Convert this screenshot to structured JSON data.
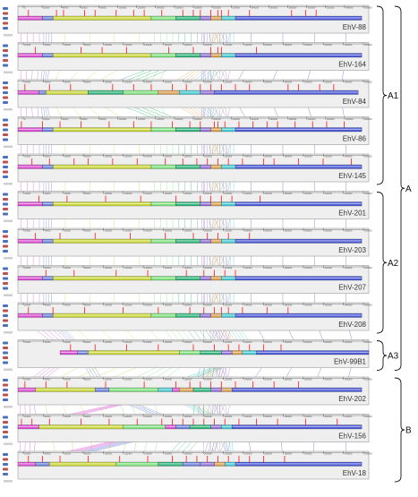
{
  "tracks": [
    {
      "name": "EhV-88",
      "axis": [
        "0",
        "20000",
        "40000",
        "60000",
        "80000",
        "100000",
        "120000",
        "140000",
        "160000",
        "180000",
        "200000",
        "220000",
        "240000",
        "260000",
        "280000",
        "300000",
        "320000",
        "340000",
        "360000"
      ],
      "blocks": [
        [
          "#d94fd1",
          0.0,
          0.07
        ],
        [
          "#6a7fd8",
          0.07,
          0.1
        ],
        [
          "#c9d63b",
          0.1,
          0.38
        ],
        [
          "#7ee07e",
          0.38,
          0.45
        ],
        [
          "#2fb37a",
          0.45,
          0.52
        ],
        [
          "#8f6fd6",
          0.52,
          0.55
        ],
        [
          "#d8a050",
          0.55,
          0.58
        ],
        [
          "#47c8d0",
          0.58,
          0.62
        ],
        [
          "#4c5ad6",
          0.62,
          0.98
        ]
      ],
      "marks": [
        0.03,
        0.11,
        0.13,
        0.19,
        0.22,
        0.28,
        0.33,
        0.36,
        0.41,
        0.47,
        0.5,
        0.52,
        0.55,
        0.57,
        0.58,
        0.6,
        0.66,
        0.78,
        0.82,
        0.85
      ]
    },
    {
      "name": "EhV-164",
      "axis": [
        "20000",
        "40000",
        "60000",
        "80000",
        "100000",
        "120000",
        "140000",
        "160000",
        "180000",
        "200000",
        "220000",
        "240000",
        "260000",
        "280000",
        "300000",
        "320000",
        "340000",
        "360000"
      ],
      "blocks": [
        [
          "#d94fd1",
          0.0,
          0.07
        ],
        [
          "#6a7fd8",
          0.07,
          0.1
        ],
        [
          "#c9d63b",
          0.1,
          0.38
        ],
        [
          "#7ee07e",
          0.38,
          0.45
        ],
        [
          "#2fb37a",
          0.45,
          0.52
        ],
        [
          "#8f6fd6",
          0.52,
          0.55
        ],
        [
          "#d8a050",
          0.55,
          0.58
        ],
        [
          "#47c8d0",
          0.58,
          0.62
        ],
        [
          "#4c5ad6",
          0.62,
          0.98
        ]
      ],
      "marks": [
        0.05,
        0.18,
        0.24,
        0.31,
        0.43,
        0.5,
        0.55,
        0.57,
        0.58,
        0.68
      ]
    },
    {
      "name": "EhV-84",
      "axis": [
        "20000",
        "40000",
        "60000",
        "80000",
        "100000",
        "120000",
        "140000",
        "160000",
        "180000",
        "200000",
        "220000",
        "240000",
        "260000",
        "280000",
        "300000",
        "320000",
        "340000",
        "360000"
      ],
      "blocks": [
        [
          "#d94fd1",
          0.0,
          0.06
        ],
        [
          "#6a7fd8",
          0.06,
          0.08
        ],
        [
          "#c9d63b",
          0.08,
          0.2
        ],
        [
          "#2fb37a",
          0.2,
          0.3
        ],
        [
          "#7ee07e",
          0.3,
          0.4
        ],
        [
          "#d8a050",
          0.4,
          0.46
        ],
        [
          "#47c8d0",
          0.46,
          0.52
        ],
        [
          "#8f6fd6",
          0.52,
          0.56
        ],
        [
          "#4c5ad6",
          0.56,
          0.97
        ]
      ],
      "marks": [
        0.02,
        0.09,
        0.15,
        0.27,
        0.33,
        0.38,
        0.44,
        0.48,
        0.52,
        0.55,
        0.58,
        0.62,
        0.66,
        0.77,
        0.8,
        0.86,
        0.9
      ]
    },
    {
      "name": "EhV-86",
      "axis": [
        "0",
        "20000",
        "40000",
        "60000",
        "80000",
        "100000",
        "120000",
        "140000",
        "160000",
        "180000",
        "200000",
        "220000",
        "240000",
        "260000",
        "280000",
        "300000",
        "320000",
        "340000",
        "360000"
      ],
      "blocks": [
        [
          "#d94fd1",
          0.0,
          0.07
        ],
        [
          "#6a7fd8",
          0.07,
          0.1
        ],
        [
          "#c9d63b",
          0.1,
          0.38
        ],
        [
          "#7ee07e",
          0.38,
          0.45
        ],
        [
          "#2fb37a",
          0.45,
          0.52
        ],
        [
          "#8f6fd6",
          0.52,
          0.55
        ],
        [
          "#d8a050",
          0.55,
          0.58
        ],
        [
          "#47c8d0",
          0.58,
          0.62
        ],
        [
          "#4c5ad6",
          0.62,
          0.98
        ]
      ],
      "marks": [
        0.01,
        0.07,
        0.12,
        0.18,
        0.26,
        0.33,
        0.38,
        0.44,
        0.49,
        0.52,
        0.56,
        0.57,
        0.59,
        0.63,
        0.67,
        0.71,
        0.74,
        0.79,
        0.84,
        0.88,
        0.93
      ]
    },
    {
      "name": "EhV-145",
      "axis": [
        "20000",
        "40000",
        "60000",
        "80000",
        "100000",
        "120000",
        "140000",
        "160000",
        "180000",
        "200000",
        "220000",
        "240000",
        "260000",
        "280000",
        "300000",
        "320000",
        "340000",
        "360000"
      ],
      "blocks": [
        [
          "#d94fd1",
          0.0,
          0.07
        ],
        [
          "#6a7fd8",
          0.07,
          0.1
        ],
        [
          "#c9d63b",
          0.1,
          0.38
        ],
        [
          "#7ee07e",
          0.38,
          0.45
        ],
        [
          "#2fb37a",
          0.45,
          0.52
        ],
        [
          "#8f6fd6",
          0.52,
          0.55
        ],
        [
          "#d8a050",
          0.55,
          0.58
        ],
        [
          "#47c8d0",
          0.58,
          0.62
        ],
        [
          "#4c5ad6",
          0.62,
          0.98
        ]
      ],
      "marks": [
        0.04,
        0.09,
        0.16,
        0.2,
        0.27,
        0.34,
        0.42,
        0.47,
        0.51,
        0.54,
        0.57,
        0.6,
        0.64,
        0.7,
        0.73,
        0.8,
        0.87,
        0.95
      ]
    },
    {
      "name": "EhV-201",
      "axis": [
        "20000",
        "40000",
        "60000",
        "80000",
        "100000",
        "120000",
        "140000",
        "160000",
        "180000",
        "200000",
        "220000",
        "240000",
        "260000",
        "280000",
        "300000",
        "320000",
        "340000",
        "360000"
      ],
      "blocks": [
        [
          "#d94fd1",
          0.0,
          0.07
        ],
        [
          "#6a7fd8",
          0.07,
          0.1
        ],
        [
          "#c9d63b",
          0.1,
          0.38
        ],
        [
          "#7ee07e",
          0.38,
          0.45
        ],
        [
          "#2fb37a",
          0.45,
          0.52
        ],
        [
          "#8f6fd6",
          0.52,
          0.55
        ],
        [
          "#d8a050",
          0.55,
          0.58
        ],
        [
          "#47c8d0",
          0.58,
          0.62
        ],
        [
          "#4c5ad6",
          0.62,
          0.98
        ]
      ],
      "marks": [
        0.06,
        0.14,
        0.25,
        0.35,
        0.45,
        0.52,
        0.55,
        0.58,
        0.61,
        0.69
      ]
    },
    {
      "name": "EhV-203",
      "axis": [
        "20000",
        "40000",
        "60000",
        "80000",
        "100000",
        "120000",
        "140000",
        "160000",
        "180000",
        "200000",
        "220000",
        "240000",
        "260000",
        "280000",
        "300000",
        "320000",
        "340000",
        "360000"
      ],
      "blocks": [
        [
          "#d94fd1",
          0.0,
          0.07
        ],
        [
          "#6a7fd8",
          0.07,
          0.1
        ],
        [
          "#c9d63b",
          0.1,
          0.38
        ],
        [
          "#7ee07e",
          0.38,
          0.45
        ],
        [
          "#2fb37a",
          0.45,
          0.52
        ],
        [
          "#8f6fd6",
          0.52,
          0.55
        ],
        [
          "#d8a050",
          0.55,
          0.58
        ],
        [
          "#47c8d0",
          0.58,
          0.62
        ],
        [
          "#4c5ad6",
          0.62,
          0.98
        ]
      ],
      "marks": [
        0.05,
        0.12,
        0.22,
        0.32,
        0.42,
        0.5,
        0.54,
        0.57,
        0.6,
        0.66
      ]
    },
    {
      "name": "EhV-207",
      "axis": [
        "20000",
        "40000",
        "60000",
        "80000",
        "100000",
        "120000",
        "140000",
        "160000",
        "180000",
        "200000",
        "220000",
        "240000",
        "260000",
        "280000",
        "300000",
        "320000",
        "340000",
        "360000"
      ],
      "blocks": [
        [
          "#d94fd1",
          0.0,
          0.07
        ],
        [
          "#6a7fd8",
          0.07,
          0.1
        ],
        [
          "#c9d63b",
          0.1,
          0.38
        ],
        [
          "#7ee07e",
          0.38,
          0.45
        ],
        [
          "#2fb37a",
          0.45,
          0.52
        ],
        [
          "#8f6fd6",
          0.52,
          0.55
        ],
        [
          "#d8a050",
          0.55,
          0.58
        ],
        [
          "#47c8d0",
          0.58,
          0.62
        ],
        [
          "#4c5ad6",
          0.62,
          0.98
        ]
      ],
      "marks": [
        0.08,
        0.16,
        0.28,
        0.37,
        0.48,
        0.53,
        0.56,
        0.59,
        0.62
      ]
    },
    {
      "name": "EhV-208",
      "axis": [
        "20000",
        "40000",
        "60000",
        "80000",
        "100000",
        "120000",
        "140000",
        "160000",
        "180000",
        "200000",
        "220000",
        "240000",
        "260000",
        "280000",
        "300000",
        "320000",
        "340000",
        "360000"
      ],
      "blocks": [
        [
          "#d94fd1",
          0.0,
          0.07
        ],
        [
          "#6a7fd8",
          0.07,
          0.1
        ],
        [
          "#c9d63b",
          0.1,
          0.38
        ],
        [
          "#7ee07e",
          0.38,
          0.45
        ],
        [
          "#2fb37a",
          0.45,
          0.52
        ],
        [
          "#8f6fd6",
          0.52,
          0.55
        ],
        [
          "#d8a050",
          0.55,
          0.58
        ],
        [
          "#47c8d0",
          0.58,
          0.62
        ],
        [
          "#4c5ad6",
          0.62,
          0.98
        ]
      ],
      "marks": [
        0.03,
        0.1,
        0.19,
        0.3,
        0.4,
        0.49,
        0.53,
        0.56,
        0.58,
        0.6,
        0.64,
        0.71,
        0.77
      ]
    },
    {
      "name": "EhV-99B1",
      "axis": [
        "20000",
        "40000",
        "60000",
        "80000",
        "100000",
        "120000",
        "140000",
        "160000",
        "180000",
        "200000",
        "220000",
        "240000",
        "260000",
        "280000",
        "300000",
        "320000",
        "340000",
        "360000"
      ],
      "blocks": [
        [
          "#d94fd1",
          0.12,
          0.17
        ],
        [
          "#6a7fd8",
          0.17,
          0.2
        ],
        [
          "#c9d63b",
          0.2,
          0.46
        ],
        [
          "#7ee07e",
          0.46,
          0.52
        ],
        [
          "#2fb37a",
          0.52,
          0.58
        ],
        [
          "#8f6fd6",
          0.58,
          0.61
        ],
        [
          "#d8a050",
          0.61,
          0.64
        ],
        [
          "#47c8d0",
          0.64,
          0.68
        ],
        [
          "#4c5ad6",
          0.68,
          1.0
        ]
      ],
      "marks": [
        0.15,
        0.22,
        0.31,
        0.4,
        0.5,
        0.56,
        0.6,
        0.63,
        0.66,
        0.7,
        0.75
      ]
    },
    {
      "name": "EhV-202",
      "axis": [
        "20000",
        "40000",
        "60000",
        "80000",
        "100000",
        "120000",
        "140000",
        "160000",
        "180000",
        "200000",
        "220000",
        "240000",
        "260000",
        "280000",
        "300000",
        "320000",
        "340000",
        "360000"
      ],
      "blocks": [
        [
          "#d94fd1",
          0.0,
          0.05
        ],
        [
          "#c9d63b",
          0.05,
          0.22
        ],
        [
          "#6a7fd8",
          0.22,
          0.26
        ],
        [
          "#7ee07e",
          0.26,
          0.4
        ],
        [
          "#47c8d0",
          0.4,
          0.44
        ],
        [
          "#d94fd1",
          0.44,
          0.46
        ],
        [
          "#d8a050",
          0.46,
          0.5
        ],
        [
          "#2fb37a",
          0.5,
          0.55
        ],
        [
          "#8f6fd6",
          0.55,
          0.58
        ],
        [
          "#d8a050",
          0.58,
          0.61
        ],
        [
          "#4c5ad6",
          0.61,
          0.98
        ]
      ],
      "marks": [
        0.02,
        0.08,
        0.14,
        0.25,
        0.36,
        0.45,
        0.49,
        0.52,
        0.55,
        0.58,
        0.62,
        0.67,
        0.73,
        0.8
      ]
    },
    {
      "name": "EhV-156",
      "axis": [
        "20000",
        "40000",
        "60000",
        "80000",
        "100000",
        "120000",
        "140000",
        "160000",
        "180000",
        "200000",
        "220000",
        "240000",
        "260000",
        "280000",
        "300000",
        "320000",
        "340000",
        "360000"
      ],
      "blocks": [
        [
          "#d94fd1",
          0.0,
          0.06
        ],
        [
          "#c9d63b",
          0.06,
          0.3
        ],
        [
          "#7ee07e",
          0.3,
          0.42
        ],
        [
          "#d94fd1",
          0.42,
          0.45
        ],
        [
          "#6a7fd8",
          0.45,
          0.49
        ],
        [
          "#2fb37a",
          0.49,
          0.55
        ],
        [
          "#8f6fd6",
          0.55,
          0.58
        ],
        [
          "#47c8d0",
          0.58,
          0.61
        ],
        [
          "#4c5ad6",
          0.61,
          0.98
        ]
      ],
      "marks": [
        0.01,
        0.04,
        0.09,
        0.18,
        0.26,
        0.34,
        0.41,
        0.44,
        0.47,
        0.5,
        0.53,
        0.56,
        0.59,
        0.63,
        0.68,
        0.74,
        0.82,
        0.91
      ]
    },
    {
      "name": "EhV-18",
      "axis": [
        "20000",
        "40000",
        "60000",
        "80000",
        "100000",
        "120000",
        "140000",
        "160000",
        "180000",
        "200000",
        "220000",
        "240000",
        "260000",
        "280000",
        "300000",
        "320000",
        "340000",
        "360000"
      ],
      "blocks": [
        [
          "#d94fd1",
          0.0,
          0.05
        ],
        [
          "#6a7fd8",
          0.05,
          0.09
        ],
        [
          "#c9d63b",
          0.09,
          0.28
        ],
        [
          "#7ee07e",
          0.28,
          0.4
        ],
        [
          "#2fb37a",
          0.4,
          0.47
        ],
        [
          "#6a7fd8",
          0.47,
          0.52
        ],
        [
          "#8f6fd6",
          0.52,
          0.56
        ],
        [
          "#d8a050",
          0.56,
          0.59
        ],
        [
          "#47c8d0",
          0.59,
          0.62
        ],
        [
          "#4c5ad6",
          0.62,
          0.98
        ]
      ],
      "marks": [
        0.03,
        0.07,
        0.12,
        0.2,
        0.29,
        0.37,
        0.44,
        0.48,
        0.51,
        0.54,
        0.57,
        0.6,
        0.63,
        0.66,
        0.7,
        0.76
      ]
    }
  ],
  "groups": [
    {
      "label": "A1",
      "from": 0,
      "to": 4
    },
    {
      "label": "A2",
      "from": 5,
      "to": 8
    },
    {
      "label": "A3",
      "from": 9,
      "to": 9
    },
    {
      "label": "A",
      "from": 0,
      "to": 9
    },
    {
      "label": "B",
      "from": 10,
      "to": 12
    }
  ],
  "colors": {
    "track_bg": "#efefef",
    "frame": "#9a9a9a",
    "mark": "#ff2a2a",
    "label": "#333333",
    "bracket": "#111111"
  },
  "icons": [
    "track-control-icons"
  ]
}
